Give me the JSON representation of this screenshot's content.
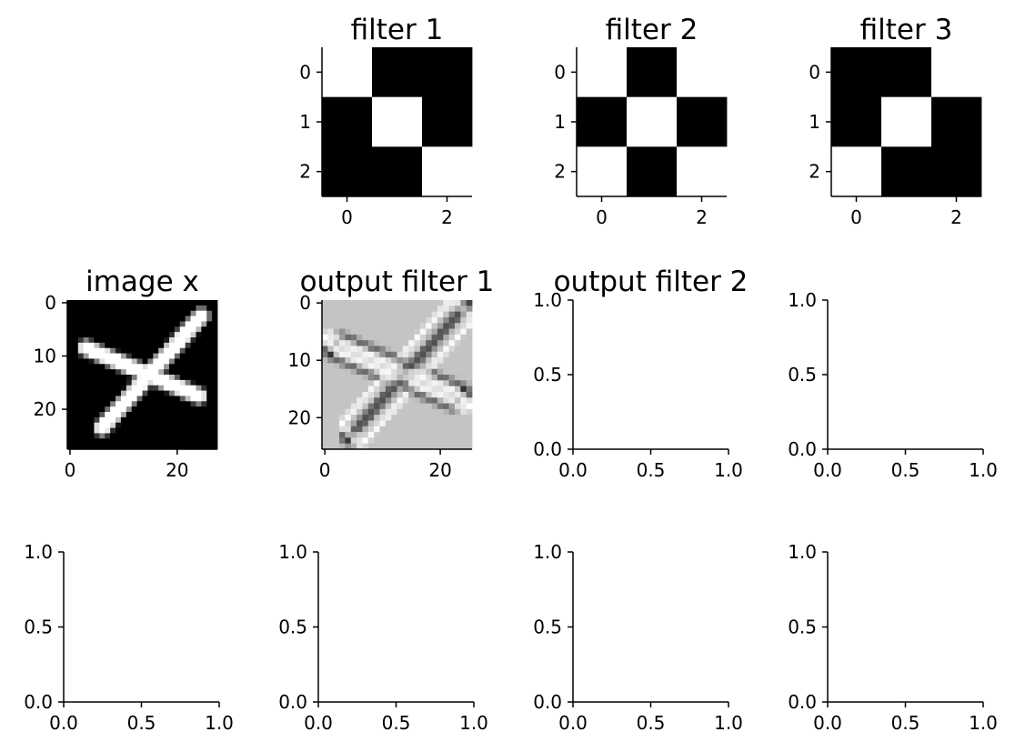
{
  "chart_data": [
    {
      "type": "heatmap",
      "title": "filter 1",
      "matrix": [
        [
          1,
          0,
          0
        ],
        [
          0,
          1,
          0
        ],
        [
          0,
          0,
          1
        ]
      ],
      "colormap": "gray",
      "xticks": [
        "0",
        "2"
      ],
      "yticks": [
        "0",
        "1",
        "2"
      ]
    },
    {
      "type": "heatmap",
      "title": "filter 2",
      "matrix": [
        [
          1,
          0,
          1
        ],
        [
          0,
          1,
          0
        ],
        [
          1,
          0,
          1
        ]
      ],
      "colormap": "gray",
      "xticks": [
        "0",
        "2"
      ],
      "yticks": [
        "0",
        "1",
        "2"
      ]
    },
    {
      "type": "heatmap",
      "title": "filter 3",
      "matrix": [
        [
          0,
          0,
          1
        ],
        [
          0,
          1,
          0
        ],
        [
          1,
          0,
          0
        ]
      ],
      "colormap": "gray",
      "xticks": [
        "0",
        "2"
      ],
      "yticks": [
        "0",
        "1",
        "2"
      ]
    },
    {
      "type": "heatmap",
      "title": "image x",
      "colormap": "gray",
      "image_size": [
        28,
        28
      ],
      "content": "white X stroke on black",
      "xticks": [
        "0",
        "20"
      ],
      "yticks": [
        "0",
        "10",
        "20"
      ]
    },
    {
      "type": "heatmap",
      "title": "output filter 1",
      "colormap": "gray",
      "image_size": [
        26,
        26
      ],
      "content": "filtered X: light and dark edges on mid-gray",
      "xticks": [
        "0",
        "20"
      ],
      "yticks": [
        "0",
        "10",
        "20"
      ]
    },
    {
      "type": "empty",
      "title": "output filter 2",
      "xlim": [
        0,
        1
      ],
      "ylim": [
        0,
        1
      ],
      "xticks": [
        "0.0",
        "0.5",
        "1.0"
      ],
      "yticks": [
        "0.0",
        "0.5",
        "1.0"
      ]
    },
    {
      "type": "empty",
      "title": "",
      "xlim": [
        0,
        1
      ],
      "ylim": [
        0,
        1
      ],
      "xticks": [
        "0.0",
        "0.5",
        "1.0"
      ],
      "yticks": [
        "0.0",
        "0.5",
        "1.0"
      ]
    },
    {
      "type": "empty",
      "title": "",
      "xlim": [
        0,
        1
      ],
      "ylim": [
        0,
        1
      ],
      "xticks": [
        "0.0",
        "0.5",
        "1.0"
      ],
      "yticks": [
        "0.0",
        "0.5",
        "1.0"
      ]
    },
    {
      "type": "empty",
      "title": "",
      "xlim": [
        0,
        1
      ],
      "ylim": [
        0,
        1
      ],
      "xticks": [
        "0.0",
        "0.5",
        "1.0"
      ],
      "yticks": [
        "0.0",
        "0.5",
        "1.0"
      ]
    },
    {
      "type": "empty",
      "title": "",
      "xlim": [
        0,
        1
      ],
      "ylim": [
        0,
        1
      ],
      "xticks": [
        "0.0",
        "0.5",
        "1.0"
      ],
      "yticks": [
        "0.0",
        "0.5",
        "1.0"
      ]
    },
    {
      "type": "empty",
      "title": "",
      "xlim": [
        0,
        1
      ],
      "ylim": [
        0,
        1
      ],
      "xticks": [
        "0.0",
        "0.5",
        "1.0"
      ],
      "yticks": [
        "0.0",
        "0.5",
        "1.0"
      ]
    }
  ]
}
